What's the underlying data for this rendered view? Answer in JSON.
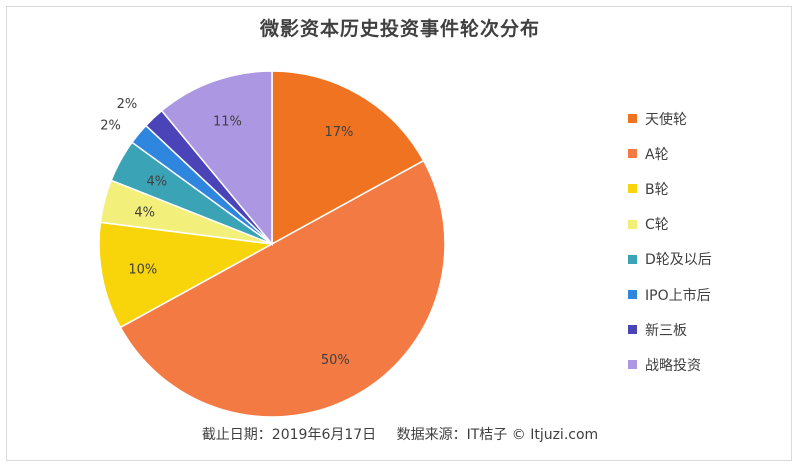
{
  "chart_data": {
    "type": "pie",
    "title": "微影资本历史投资事件轮次分布",
    "legend_position": "right",
    "slices": [
      {
        "label": "天使轮",
        "value": 17,
        "value_label": "17%",
        "color": "#f07322"
      },
      {
        "label": "A轮",
        "value": 50,
        "value_label": "50%",
        "color": "#f47a44"
      },
      {
        "label": "B轮",
        "value": 10,
        "value_label": "10%",
        "color": "#f7d50a"
      },
      {
        "label": "C轮",
        "value": 4,
        "value_label": "4%",
        "color": "#f2f07a"
      },
      {
        "label": "D轮及以后",
        "value": 4,
        "value_label": "4%",
        "color": "#3ba3b6"
      },
      {
        "label": "IPO上市后",
        "value": 2,
        "value_label": "2%",
        "color": "#2f86de"
      },
      {
        "label": "新三板",
        "value": 2,
        "value_label": "2%",
        "color": "#4b44b8"
      },
      {
        "label": "战略投资",
        "value": 11,
        "value_label": "11%",
        "color": "#ac97e2"
      }
    ]
  },
  "footer": {
    "date_text": "截止日期：2019年6月17日",
    "source_text": "数据来源：IT桔子 © Itjuzi.com"
  }
}
